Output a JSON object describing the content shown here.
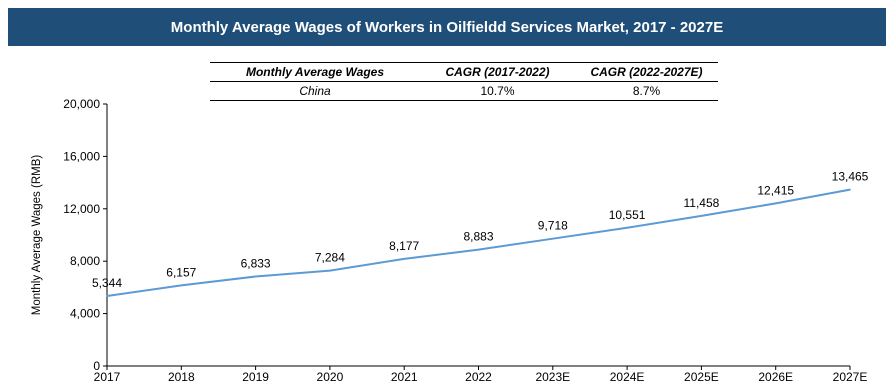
{
  "header": {
    "title": "Monthly Average Wages of Workers in Oilfieldd Services Market, 2017 - 2027E"
  },
  "table": {
    "headers": [
      "Monthly Average Wages",
      "CAGR (2017-2022)",
      "CAGR (2022-2027E)"
    ],
    "row": {
      "label": "China",
      "cagr1": "10.7%",
      "cagr2": "8.7%"
    }
  },
  "chart_data": {
    "type": "line",
    "title": "Monthly Average Wages of Workers in Oilfieldd Services Market, 2017 - 2027E",
    "xlabel": "",
    "ylabel": "Monthly Average Wages (RMB)",
    "ylim": [
      0,
      20000
    ],
    "yticks": [
      "0",
      "4,000",
      "8,000",
      "12,000",
      "16,000",
      "20,000"
    ],
    "ytick_values": [
      0,
      4000,
      8000,
      12000,
      16000,
      20000
    ],
    "categories": [
      "2017",
      "2018",
      "2019",
      "2020",
      "2021",
      "2022",
      "2023E",
      "2024E",
      "2025E",
      "2026E",
      "2027E"
    ],
    "series": [
      {
        "values": [
          5344,
          6157,
          6833,
          7284,
          8177,
          8883,
          9718,
          10551,
          11458,
          12415,
          13465
        ],
        "labels": [
          "5,344",
          "6,157",
          "6,833",
          "7,284",
          "8,177",
          "8,883",
          "9,718",
          "10,551",
          "11,458",
          "12,415",
          "13,465"
        ],
        "color": "#5b9bd5"
      }
    ],
    "grid": false,
    "legend": "none"
  }
}
